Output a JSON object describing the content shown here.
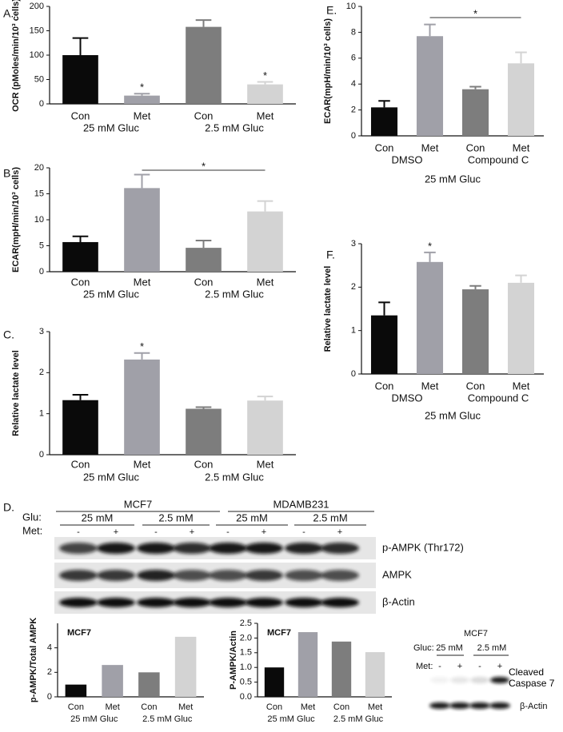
{
  "chart_data": [
    {
      "type": "bar",
      "panel": "A.",
      "ylabel": "OCR (pMoles/min/10³ cells)",
      "categories": [
        "Con",
        "Met",
        "Con",
        "Met"
      ],
      "groups": [
        "25 mM Gluc",
        "2.5 mM Gluc"
      ],
      "values": [
        100,
        17,
        158,
        40
      ],
      "errors": [
        35,
        4,
        14,
        5
      ],
      "value_labels": [
        null,
        "*",
        null,
        "*"
      ],
      "colors": [
        "#0a0a0a",
        "#a0a0a8",
        "#7d7d7d",
        "#d3d3d3"
      ],
      "ylim": [
        0,
        200
      ],
      "yticks": [
        0,
        50,
        100,
        150,
        200
      ]
    },
    {
      "type": "bar",
      "panel": "B.",
      "ylabel": "ECAR(mpH/min/10³ cells)",
      "categories": [
        "Con",
        "Met",
        "Con",
        "Met"
      ],
      "groups": [
        "25 mM Gluc",
        "2.5 mM Gluc"
      ],
      "values": [
        5.7,
        16.1,
        4.6,
        11.6
      ],
      "errors": [
        1.1,
        2.6,
        1.4,
        2.0
      ],
      "significance": [
        {
          "label": "*",
          "between": [
            1,
            3
          ]
        }
      ],
      "colors": [
        "#0a0a0a",
        "#a0a0a8",
        "#7d7d7d",
        "#d3d3d3"
      ],
      "ylim": [
        0,
        20
      ],
      "yticks": [
        0,
        5,
        10,
        15,
        20
      ]
    },
    {
      "type": "bar",
      "panel": "C.",
      "ylabel": "Relative lactate level",
      "categories": [
        "Con",
        "Met",
        "Con",
        "Met"
      ],
      "groups": [
        "25 mM Gluc",
        "2.5 mM Gluc"
      ],
      "values": [
        1.33,
        2.32,
        1.12,
        1.32
      ],
      "errors": [
        0.13,
        0.16,
        0.04,
        0.1
      ],
      "value_labels": [
        null,
        "*",
        null,
        null
      ],
      "colors": [
        "#0a0a0a",
        "#a0a0a8",
        "#7d7d7d",
        "#d3d3d3"
      ],
      "ylim": [
        0,
        3
      ],
      "yticks": [
        0,
        1,
        2,
        3
      ]
    },
    {
      "type": "bar",
      "panel": "E.",
      "ylabel": "ECAR(mpH/min/10³ cells)",
      "categories": [
        "Con",
        "Met",
        "Con",
        "Met"
      ],
      "groups": [
        "DMSO",
        "Compound C"
      ],
      "xlabel": "25 mM Gluc",
      "values": [
        2.2,
        7.7,
        3.6,
        5.6
      ],
      "errors": [
        0.5,
        0.9,
        0.2,
        0.85
      ],
      "significance": [
        {
          "label": "*",
          "between": [
            1,
            3
          ]
        }
      ],
      "colors": [
        "#0a0a0a",
        "#a0a0a8",
        "#7d7d7d",
        "#d3d3d3"
      ],
      "ylim": [
        0,
        10
      ],
      "yticks": [
        0,
        2,
        4,
        6,
        8,
        10
      ]
    },
    {
      "type": "bar",
      "panel": "F.",
      "ylabel": "Relative lactate level",
      "categories": [
        "Con",
        "Met",
        "Con",
        "Met"
      ],
      "groups": [
        "DMSO",
        "Compound C"
      ],
      "xlabel": "25 mM Gluc",
      "values": [
        1.35,
        2.58,
        1.95,
        2.1
      ],
      "errors": [
        0.3,
        0.22,
        0.08,
        0.17
      ],
      "value_labels": [
        null,
        "*",
        null,
        null
      ],
      "colors": [
        "#0a0a0a",
        "#a0a0a8",
        "#7d7d7d",
        "#d3d3d3"
      ],
      "ylim": [
        0,
        3
      ],
      "yticks": [
        0,
        1,
        2,
        3
      ]
    },
    {
      "type": "bar",
      "inset_label": "MCF7",
      "ylabel": "p-AMPK/Total AMPK",
      "categories": [
        "Con",
        "Met",
        "Con",
        "Met"
      ],
      "groups": [
        "25 mM Gluc",
        "2.5 mM Gluc"
      ],
      "values": [
        1.0,
        2.6,
        2.0,
        4.9
      ],
      "colors": [
        "#0a0a0a",
        "#a0a0a8",
        "#7d7d7d",
        "#d3d3d3"
      ],
      "ylim": [
        0,
        6
      ],
      "yticks": [
        0,
        2,
        4
      ]
    },
    {
      "type": "bar",
      "inset_label": "MCF7",
      "ylabel": "P-AMPK/Actin",
      "categories": [
        "Con",
        "Met",
        "Con",
        "Met"
      ],
      "groups": [
        "25 mM Gluc",
        "2.5 mM Gluc"
      ],
      "values": [
        1.0,
        2.2,
        1.88,
        1.52
      ],
      "colors": [
        "#0a0a0a",
        "#a0a0a8",
        "#7d7d7d",
        "#d3d3d3"
      ],
      "ylim": [
        0,
        2.5
      ],
      "yticks": [
        {
          "value": 0,
          "label": "0.0"
        },
        0.5,
        {
          "value": 1,
          "label": "1.0"
        },
        1.5,
        {
          "value": 2,
          "label": "2.0"
        },
        2.5
      ]
    }
  ],
  "blots": {
    "panel": "D.",
    "glu_label": "Glu:",
    "met_label": "Met:",
    "cell_lines": [
      "MCF7",
      "MDAMB231"
    ],
    "glucose": [
      "25 mM",
      "2.5 mM",
      "25 mM",
      "2.5 mM"
    ],
    "treatment": [
      "-",
      "+",
      "-",
      "+",
      "-",
      "+",
      "-",
      "+"
    ],
    "rows": [
      "p-AMPK (Thr172)",
      "AMPK",
      "β-Actin"
    ]
  },
  "caspase": {
    "title": "MCF7",
    "gluc_label": "Gluc:",
    "glucose": [
      "25 mM",
      "2.5 mM"
    ],
    "met_label": "Met:",
    "treatment": [
      "-",
      "+",
      "-",
      "+"
    ],
    "rows": [
      "Cleaved Caspase 7",
      "β-Actin"
    ]
  }
}
